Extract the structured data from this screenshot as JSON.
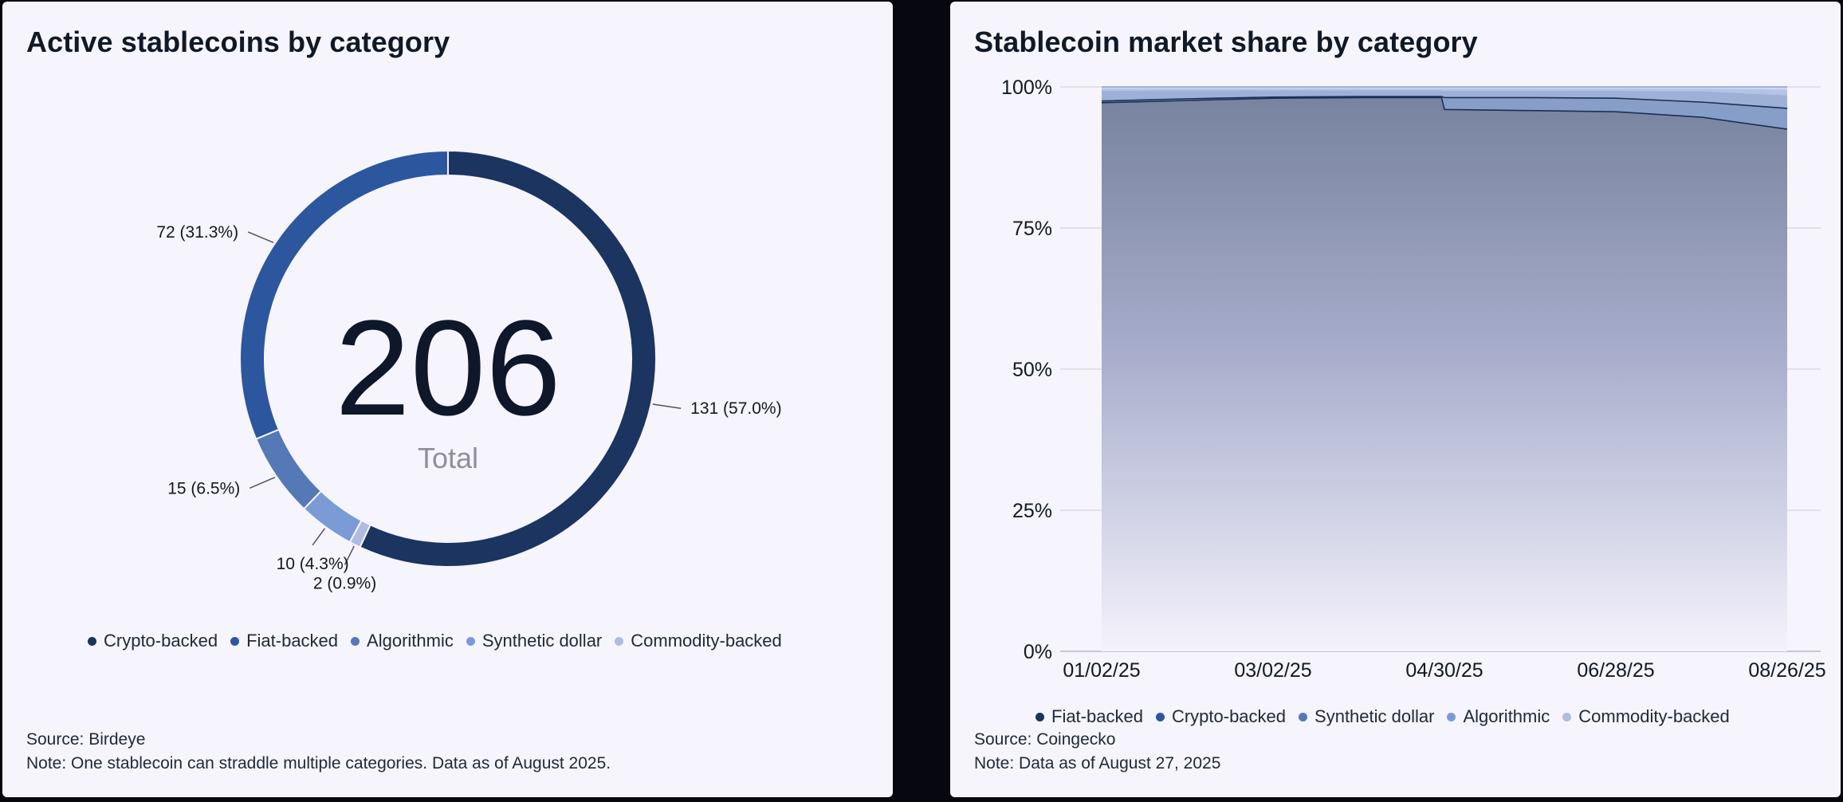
{
  "left": {
    "title": "Active stablecoins by category",
    "center_value": "206",
    "center_label": "Total",
    "source": "Source: Birdeye",
    "note": "Note: One stablecoin can straddle multiple categories. Data as of August 2025."
  },
  "right": {
    "title": "Stablecoin market share by category",
    "source": "Source: Coingecko",
    "note": "Note: Data as of August 27, 2025"
  },
  "colors": {
    "crypto": "#1b3460",
    "fiat": "#2c579e",
    "algorithmic": "#5579b7",
    "synthetic": "#7a9bd6",
    "commodity": "#aebde0",
    "line_dark": "#1b3056"
  },
  "chart_data": [
    {
      "type": "pie",
      "title": "Active stablecoins by category",
      "total": 206,
      "slices": [
        {
          "name": "Crypto-backed",
          "value": 131,
          "label": "131 (57.0%)",
          "color": "#1b3460"
        },
        {
          "name": "Commodity-backed",
          "value": 2,
          "label": "2 (0.9%)",
          "color": "#aebde0"
        },
        {
          "name": "Synthetic dollar",
          "value": 10,
          "label": "10 (4.3%)",
          "color": "#7a9bd6"
        },
        {
          "name": "Algorithmic",
          "value": 15,
          "label": "15 (6.5%)",
          "color": "#5579b7"
        },
        {
          "name": "Fiat-backed",
          "value": 72,
          "label": "72 (31.3%)",
          "color": "#2c579e"
        }
      ],
      "legend": [
        {
          "name": "Crypto-backed",
          "color": "#1b3460"
        },
        {
          "name": "Fiat-backed",
          "color": "#2c579e"
        },
        {
          "name": "Algorithmic",
          "color": "#5579b7"
        },
        {
          "name": "Synthetic dollar",
          "color": "#7a9bd6"
        },
        {
          "name": "Commodity-backed",
          "color": "#aebde0"
        }
      ]
    },
    {
      "type": "area",
      "stacked": true,
      "title": "Stablecoin market share by category",
      "x_ticks": [
        "01/02/25",
        "03/02/25",
        "04/30/25",
        "06/28/25",
        "08/26/25"
      ],
      "y_ticks": [
        "0%",
        "25%",
        "50%",
        "75%",
        "100%"
      ],
      "ylim": [
        0,
        100
      ],
      "grid": true,
      "x": [
        "01/02/25",
        "02/01/25",
        "03/02/25",
        "04/01/25",
        "04/29/25",
        "04/30/25",
        "05/30/25",
        "06/28/25",
        "07/28/25",
        "08/26/25"
      ],
      "series": [
        {
          "name": "Fiat-backed",
          "color": "#1b3460",
          "values": [
            97.2,
            97.6,
            98.0,
            98.1,
            98.1,
            96.0,
            95.8,
            95.6,
            94.6,
            92.5
          ]
        },
        {
          "name": "Crypto-backed",
          "color": "#2c579e",
          "values": [
            0.3,
            0.3,
            0.2,
            0.2,
            0.2,
            2.1,
            2.3,
            2.4,
            2.7,
            3.7
          ]
        },
        {
          "name": "Synthetic dollar",
          "color": "#5579b7",
          "values": [
            1.8,
            1.5,
            1.2,
            1.1,
            1.1,
            1.2,
            1.2,
            1.3,
            1.9,
            2.3
          ]
        },
        {
          "name": "Algorithmic",
          "color": "#7a9bd6",
          "values": [
            0.4,
            0.3,
            0.3,
            0.3,
            0.3,
            0.4,
            0.4,
            0.4,
            0.5,
            1.0
          ]
        },
        {
          "name": "Commodity-backed",
          "color": "#aebde0",
          "values": [
            0.3,
            0.3,
            0.3,
            0.3,
            0.3,
            0.3,
            0.3,
            0.3,
            0.3,
            0.5
          ]
        }
      ],
      "legend": [
        {
          "name": "Fiat-backed",
          "color": "#1b3460"
        },
        {
          "name": "Crypto-backed",
          "color": "#2c579e"
        },
        {
          "name": "Synthetic dollar",
          "color": "#5579b7"
        },
        {
          "name": "Algorithmic",
          "color": "#7a9bd6"
        },
        {
          "name": "Commodity-backed",
          "color": "#aebde0"
        }
      ]
    }
  ]
}
